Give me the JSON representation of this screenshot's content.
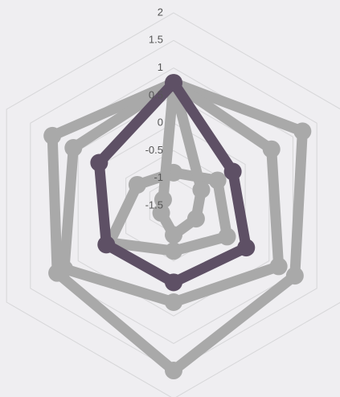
{
  "chart_data": {
    "type": "radar",
    "ylim": [
      -1.5,
      2
    ],
    "yticks": [
      -1.5,
      -1,
      -0.5,
      0,
      0.5,
      1,
      1.5,
      2
    ],
    "grid": true,
    "series": [
      {
        "color": "#a9a9a9",
        "values": [
          0.73,
          1.2,
          1.04,
          1.49,
          0.94,
          1.04
        ]
      },
      {
        "color": "#a9a9a9",
        "values": [
          0.73,
          0.55,
          0.7,
          0.25,
          0.79,
          0.6
        ]
      },
      {
        "color": "#a9a9a9",
        "values": [
          -0.9,
          -0.58,
          -0.38,
          -0.68,
          -0.16,
          -0.74
        ]
      },
      {
        "color": "#a9a9a9",
        "values": [
          0.73,
          -0.92,
          -1.03,
          -0.97,
          -1.24,
          -1.28
        ]
      },
      {
        "color": "#5e5065",
        "values": [
          0.73,
          -0.26,
          0.02,
          -0.11,
          -0.09,
          0.06
        ]
      }
    ]
  }
}
